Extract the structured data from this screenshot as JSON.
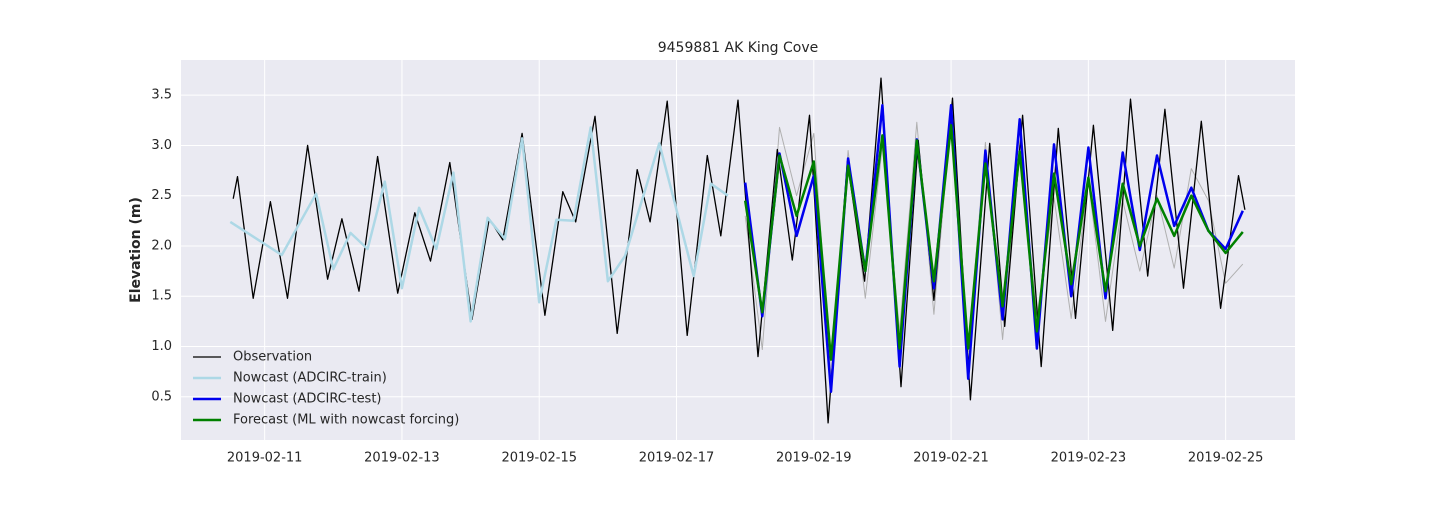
{
  "chart_data": {
    "type": "line",
    "title": "9459881 AK King Cove",
    "y_label": "Elevation (m)",
    "xlim": [
      "2019-02-09T18:45",
      "2019-02-26T00:15"
    ],
    "xticks": [
      "2019-02-11",
      "2019-02-13",
      "2019-02-15",
      "2019-02-17",
      "2019-02-19",
      "2019-02-21",
      "2019-02-23",
      "2019-02-25"
    ],
    "ylim": [
      0.07,
      3.85
    ],
    "yticks": [
      0.5,
      {
        "value": 1,
        "label": "1.0"
      },
      1.5,
      {
        "value": 2,
        "label": "2.0"
      },
      2.5,
      {
        "value": 3,
        "label": "3.0"
      },
      3.5
    ],
    "grid": true,
    "legend": "lower left",
    "series": [
      {
        "color": "#b0b0b0",
        "width": 1,
        "x": [
          "2019-02-18T00:00",
          "2019-02-18T06:00",
          "2019-02-18T12:00",
          "2019-02-18T18:00",
          "2019-02-19T00:00",
          "2019-02-19T06:00",
          "2019-02-19T12:00",
          "2019-02-19T18:00",
          "2019-02-20T00:00",
          "2019-02-20T06:00",
          "2019-02-20T12:00",
          "2019-02-20T18:00",
          "2019-02-21T00:00",
          "2019-02-21T06:00",
          "2019-02-21T12:00",
          "2019-02-21T18:00",
          "2019-02-22T00:00",
          "2019-02-22T06:00",
          "2019-02-22T12:00",
          "2019-02-22T18:00",
          "2019-02-23T00:00",
          "2019-02-23T06:00",
          "2019-02-23T12:00",
          "2019-02-23T18:00",
          "2019-02-24T00:00",
          "2019-02-24T06:00",
          "2019-02-24T12:00",
          "2019-02-24T18:00",
          "2019-02-25T00:00",
          "2019-02-25T06:00"
        ],
        "values": [
          2.3,
          0.97,
          3.18,
          2.5,
          3.12,
          0.7,
          2.95,
          1.48,
          3.0,
          1.15,
          3.23,
          1.32,
          3.3,
          0.95,
          3.03,
          1.07,
          3.0,
          1.3,
          2.48,
          1.28,
          2.65,
          1.25,
          2.45,
          1.75,
          2.5,
          1.78,
          2.77,
          2.45,
          1.63,
          1.82
        ]
      },
      {
        "name": "Observation",
        "color": "#000000",
        "width": 1.3,
        "x": [
          "2019-02-10T13:00",
          "2019-02-10T14:30",
          "2019-02-10T20:00",
          "2019-02-11T02:00",
          "2019-02-11T08:00",
          "2019-02-11T15:00",
          "2019-02-11T22:00",
          "2019-02-12T03:00",
          "2019-02-12T09:00",
          "2019-02-12T15:30",
          "2019-02-12T22:30",
          "2019-02-13T04:30",
          "2019-02-13T10:00",
          "2019-02-13T16:45",
          "2019-02-14T00:30",
          "2019-02-14T06:30",
          "2019-02-14T11:15",
          "2019-02-14T18:00",
          "2019-02-15T02:00",
          "2019-02-15T08:15",
          "2019-02-15T12:45",
          "2019-02-15T19:30",
          "2019-02-16T03:15",
          "2019-02-16T10:15",
          "2019-02-16T14:45",
          "2019-02-16T20:45",
          "2019-02-17T03:45",
          "2019-02-17T10:45",
          "2019-02-17T15:30",
          "2019-02-17T21:30",
          "2019-02-18T04:30",
          "2019-02-18T11:15",
          "2019-02-18T16:30",
          "2019-02-18T22:30",
          "2019-02-19T05:00",
          "2019-02-19T11:45",
          "2019-02-19T17:45",
          "2019-02-19T23:30",
          "2019-02-20T06:30",
          "2019-02-20T12:30",
          "2019-02-20T18:00",
          "2019-02-21T00:30",
          "2019-02-21T06:45",
          "2019-02-21T13:30",
          "2019-02-21T18:45",
          "2019-02-22T01:00",
          "2019-02-22T07:30",
          "2019-02-22T13:30",
          "2019-02-22T19:30",
          "2019-02-23T01:45",
          "2019-02-23T08:30",
          "2019-02-23T14:45",
          "2019-02-23T20:45",
          "2019-02-24T02:45",
          "2019-02-24T09:15",
          "2019-02-24T15:30",
          "2019-02-24T22:15",
          "2019-02-25T04:30",
          "2019-02-25T06:45"
        ],
        "values": [
          2.47,
          2.69,
          1.48,
          2.44,
          1.48,
          3.0,
          1.67,
          2.27,
          1.55,
          2.89,
          1.53,
          2.33,
          1.85,
          2.83,
          1.27,
          2.27,
          2.06,
          3.12,
          1.31,
          2.54,
          2.24,
          3.29,
          1.13,
          2.76,
          2.24,
          3.44,
          1.11,
          2.9,
          2.1,
          3.45,
          0.9,
          2.96,
          1.86,
          3.3,
          0.24,
          2.84,
          1.65,
          3.67,
          0.6,
          3.05,
          1.46,
          3.47,
          0.47,
          3.02,
          1.2,
          3.3,
          0.8,
          3.17,
          1.28,
          3.2,
          1.16,
          3.46,
          1.7,
          3.36,
          1.58,
          3.24,
          1.38,
          2.7,
          2.36
        ]
      },
      {
        "name": "Nowcast (ADCIRC-train)",
        "color": "#add8e6",
        "width": 2.5,
        "x": [
          "2019-02-10T12:00",
          "2019-02-11T06:00",
          "2019-02-11T18:00",
          "2019-02-12T00:00",
          "2019-02-12T06:00",
          "2019-02-12T12:00",
          "2019-02-12T18:00",
          "2019-02-13T00:00",
          "2019-02-13T06:00",
          "2019-02-13T12:00",
          "2019-02-13T18:00",
          "2019-02-14T00:00",
          "2019-02-14T06:00",
          "2019-02-14T12:00",
          "2019-02-14T18:00",
          "2019-02-15T00:00",
          "2019-02-15T06:00",
          "2019-02-15T12:00",
          "2019-02-15T18:00",
          "2019-02-16T00:00",
          "2019-02-16T06:00",
          "2019-02-16T18:00",
          "2019-02-17T06:00",
          "2019-02-17T12:00",
          "2019-02-17T18:00"
        ],
        "values": [
          2.24,
          1.91,
          2.52,
          1.77,
          2.13,
          1.97,
          2.64,
          1.58,
          2.38,
          1.97,
          2.73,
          1.25,
          2.28,
          2.07,
          3.07,
          1.44,
          2.26,
          2.25,
          3.18,
          1.65,
          1.9,
          3.02,
          1.7,
          2.62,
          2.5
        ]
      },
      {
        "name": "Nowcast (ADCIRC-test)",
        "color": "#0000ee",
        "width": 2.5,
        "x": [
          "2019-02-18T00:00",
          "2019-02-18T06:00",
          "2019-02-18T12:00",
          "2019-02-18T18:00",
          "2019-02-19T00:00",
          "2019-02-19T06:00",
          "2019-02-19T12:00",
          "2019-02-19T18:00",
          "2019-02-20T00:00",
          "2019-02-20T06:00",
          "2019-02-20T12:00",
          "2019-02-20T18:00",
          "2019-02-21T00:00",
          "2019-02-21T06:00",
          "2019-02-21T12:00",
          "2019-02-21T18:00",
          "2019-02-22T00:00",
          "2019-02-22T06:00",
          "2019-02-22T12:00",
          "2019-02-22T18:00",
          "2019-02-23T00:00",
          "2019-02-23T06:00",
          "2019-02-23T12:00",
          "2019-02-23T18:00",
          "2019-02-24T00:00",
          "2019-02-24T06:00",
          "2019-02-24T12:00",
          "2019-02-24T18:00",
          "2019-02-25T00:00",
          "2019-02-25T06:00"
        ],
        "values": [
          2.63,
          1.3,
          2.92,
          2.1,
          2.7,
          0.55,
          2.87,
          1.75,
          3.4,
          0.8,
          3.06,
          1.58,
          3.4,
          0.68,
          2.95,
          1.27,
          3.26,
          0.98,
          3.01,
          1.5,
          2.98,
          1.48,
          2.93,
          1.96,
          2.9,
          2.2,
          2.58,
          2.15,
          1.97,
          2.35
        ]
      },
      {
        "name": "Forecast (ML with nowcast forcing)",
        "color": "#008000",
        "width": 2.5,
        "x": [
          "2019-02-18T00:00",
          "2019-02-18T06:00",
          "2019-02-18T12:00",
          "2019-02-18T18:00",
          "2019-02-19T00:00",
          "2019-02-19T06:00",
          "2019-02-19T12:00",
          "2019-02-19T18:00",
          "2019-02-20T00:00",
          "2019-02-20T06:00",
          "2019-02-20T12:00",
          "2019-02-20T18:00",
          "2019-02-21T00:00",
          "2019-02-21T06:00",
          "2019-02-21T12:00",
          "2019-02-21T18:00",
          "2019-02-22T00:00",
          "2019-02-22T06:00",
          "2019-02-22T12:00",
          "2019-02-22T18:00",
          "2019-02-23T00:00",
          "2019-02-23T06:00",
          "2019-02-23T12:00",
          "2019-02-23T18:00",
          "2019-02-24T00:00",
          "2019-02-24T06:00",
          "2019-02-24T12:00",
          "2019-02-24T18:00",
          "2019-02-25T00:00",
          "2019-02-25T06:00"
        ],
        "values": [
          2.45,
          1.34,
          2.9,
          2.3,
          2.84,
          0.87,
          2.8,
          1.75,
          3.1,
          0.98,
          3.05,
          1.65,
          3.2,
          0.98,
          2.82,
          1.4,
          2.94,
          1.15,
          2.72,
          1.62,
          2.68,
          1.55,
          2.62,
          2.0,
          2.47,
          2.1,
          2.5,
          2.15,
          1.93,
          2.14
        ]
      }
    ]
  }
}
